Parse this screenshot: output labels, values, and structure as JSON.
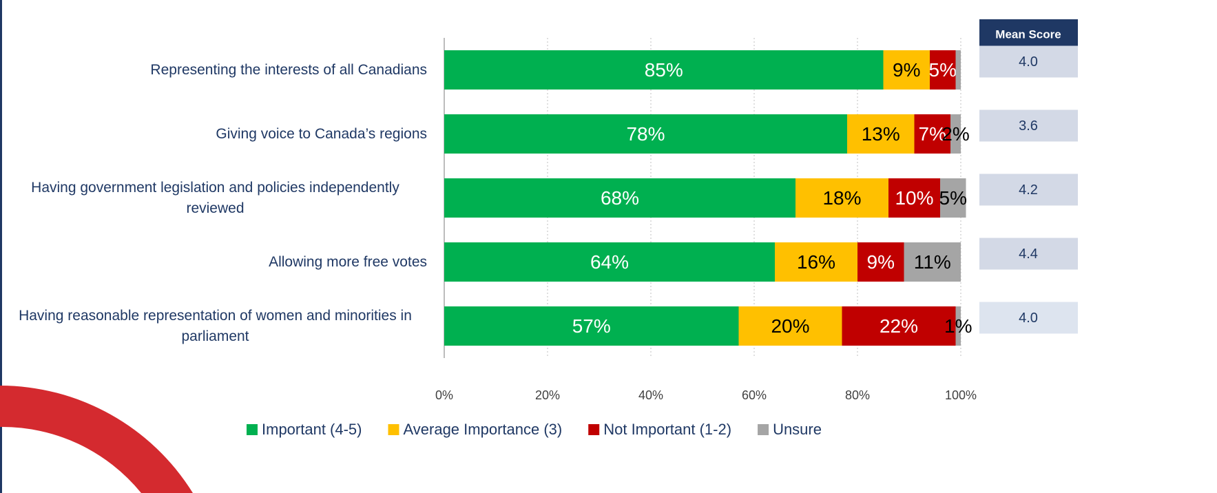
{
  "chart_data": {
    "type": "stacked-barh",
    "categories": [
      "Representing the interests of all Canadians",
      "Giving voice to Canada’s regions",
      "Having government legislation and policies independently reviewed",
      "Allowing more free votes",
      "Having reasonable representation of women and minorities in parliament"
    ],
    "series": [
      {
        "name": "Important (4-5)",
        "color": "#00b050",
        "label_color": "#ffffff",
        "values": [
          85,
          78,
          68,
          64,
          57
        ],
        "value_labels": [
          "85%",
          "78%",
          "68%",
          "64%",
          "57%"
        ]
      },
      {
        "name": "Average Importance (3)",
        "color": "#ffc000",
        "label_color": "#000000",
        "values": [
          9,
          13,
          18,
          16,
          20
        ],
        "value_labels": [
          "9%",
          "13%",
          "18%",
          "16%",
          "20%"
        ]
      },
      {
        "name": "Not Important (1-2)",
        "color": "#c00000",
        "label_color": "#ffffff",
        "values": [
          5,
          7,
          10,
          9,
          22
        ],
        "value_labels": [
          "5%",
          "7%",
          "10%",
          "9%",
          "22%"
        ]
      },
      {
        "name": "Unsure",
        "color": "#a5a5a5",
        "label_color": "#000000",
        "values": [
          1,
          2,
          5,
          11,
          1
        ],
        "value_labels": [
          null,
          "2%",
          "5%",
          "11%",
          "1%"
        ]
      }
    ],
    "xlim": [
      0,
      100
    ],
    "xticks": [
      {
        "value": 0,
        "label": "0%"
      },
      {
        "value": 20,
        "label": "20%"
      },
      {
        "value": 40,
        "label": "40%"
      },
      {
        "value": 60,
        "label": "60%"
      },
      {
        "value": 80,
        "label": "80%"
      },
      {
        "value": 100,
        "label": "100%"
      }
    ],
    "grid": true,
    "legend": "bottom",
    "mean_score": {
      "header": "Mean Score",
      "values": [
        "4.0",
        "3.6",
        "4.2",
        "4.4",
        "4.0"
      ]
    }
  }
}
